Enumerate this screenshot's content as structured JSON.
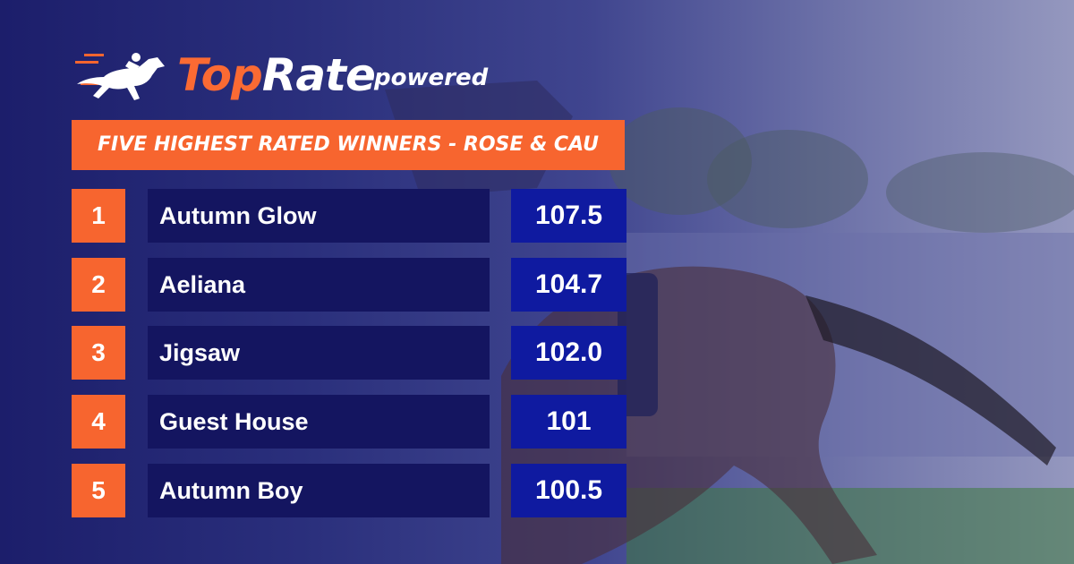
{
  "brand": {
    "logo_top": "Top",
    "logo_rate": "Rate",
    "powered": "powered"
  },
  "banner": {
    "title": "FIVE HIGHEST RATED WINNERS - ROSE & CAU"
  },
  "rows": [
    {
      "rank": "1",
      "name": "Autumn Glow",
      "rating": "107.5"
    },
    {
      "rank": "2",
      "name": "Aeliana",
      "rating": "104.7"
    },
    {
      "rank": "3",
      "name": "Jigsaw",
      "rating": "102.0"
    },
    {
      "rank": "4",
      "name": "Guest House",
      "rating": "101"
    },
    {
      "rank": "5",
      "name": "Autumn Boy",
      "rating": "100.5"
    }
  ],
  "colors": {
    "accent": "#f7652f",
    "navy": "#141560",
    "rating_blue": "#0f1aa0"
  }
}
